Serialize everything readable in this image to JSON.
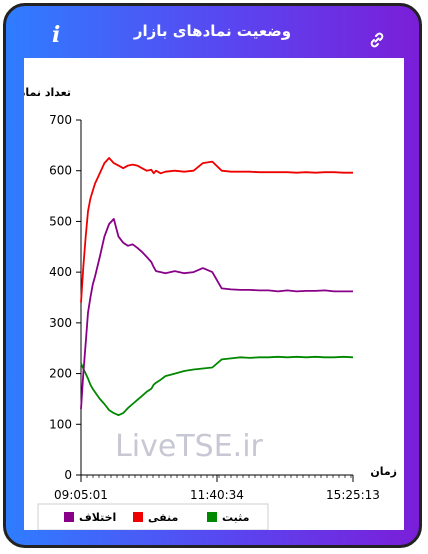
{
  "header": {
    "title": "وضعیت نمادهای بازار",
    "info_icon": "i",
    "link_icon": "link-icon"
  },
  "colors": {
    "positive": "#008800",
    "negative": "#ee0000",
    "difference": "#880088"
  },
  "chart_data": {
    "type": "line",
    "ylabel": "تعداد نماد",
    "xlabel": "زمان",
    "ylim": [
      0,
      700
    ],
    "yticks": [
      0,
      100,
      200,
      300,
      400,
      500,
      600,
      700
    ],
    "xticks": [
      "09:05:01",
      "11:40:34",
      "15:25:13"
    ],
    "watermark": "LiveTSE.ir",
    "legend_position": "bottom",
    "legend": [
      {
        "name": "اختلاف",
        "key": "difference"
      },
      {
        "name": "منفی",
        "key": "negative"
      },
      {
        "name": "مثبت",
        "key": "positive"
      }
    ],
    "x_minutes": [
      0,
      5,
      10,
      15,
      20,
      25,
      30,
      40,
      50,
      60,
      70,
      80,
      90,
      100,
      110,
      120,
      130,
      140,
      150,
      155,
      160,
      170,
      180,
      200,
      220,
      240,
      260,
      280,
      300,
      320,
      340,
      360,
      380,
      400,
      420,
      440,
      460,
      480,
      500,
      520,
      540,
      560,
      580
    ],
    "series": [
      {
        "key": "negative",
        "values": [
          340,
          410,
          470,
          520,
          545,
          560,
          575,
          595,
          615,
          625,
          615,
          610,
          605,
          610,
          612,
          610,
          605,
          600,
          602,
          595,
          600,
          595,
          598,
          600,
          598,
          600,
          615,
          618,
          600,
          598,
          598,
          598,
          597,
          597,
          597,
          597,
          596,
          597,
          596,
          597,
          597,
          596,
          596
        ]
      },
      {
        "key": "positive",
        "values": [
          220,
          210,
          200,
          190,
          178,
          170,
          163,
          150,
          140,
          128,
          122,
          118,
          122,
          132,
          140,
          148,
          156,
          164,
          170,
          178,
          182,
          188,
          195,
          200,
          205,
          208,
          210,
          212,
          228,
          230,
          232,
          231,
          232,
          232,
          233,
          232,
          233,
          232,
          233,
          232,
          232,
          233,
          232
        ]
      },
      {
        "key": "difference",
        "values": [
          130,
          200,
          260,
          320,
          350,
          375,
          392,
          430,
          470,
          495,
          505,
          470,
          458,
          452,
          455,
          448,
          440,
          430,
          420,
          410,
          402,
          400,
          398,
          402,
          398,
          400,
          408,
          400,
          368,
          366,
          365,
          365,
          364,
          364,
          362,
          364,
          362,
          363,
          363,
          364,
          362,
          362,
          362
        ]
      }
    ]
  }
}
